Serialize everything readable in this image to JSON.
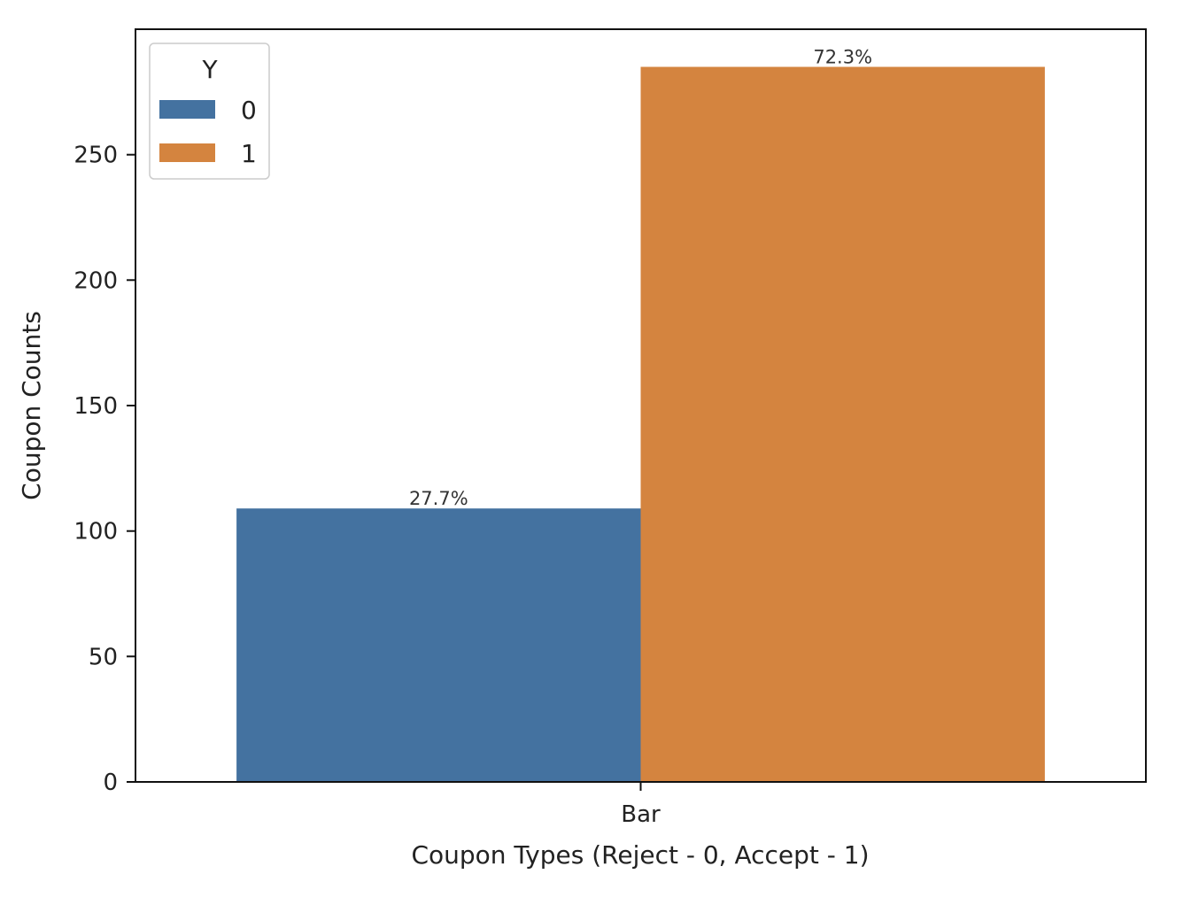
{
  "chart_data": {
    "type": "bar",
    "categories": [
      "Bar"
    ],
    "series": [
      {
        "name": "0",
        "values": [
          109
        ],
        "label": "27.7%",
        "color": "#4472a0"
      },
      {
        "name": "1",
        "values": [
          285
        ],
        "label": "72.3%",
        "color": "#d4843f"
      }
    ],
    "xlabel": "Coupon Types (Reject - 0, Accept - 1)",
    "ylabel": "Coupon Counts",
    "ylim": [
      0,
      300
    ],
    "yticks": [
      0,
      50,
      100,
      150,
      200,
      250
    ],
    "grid": false,
    "legend": {
      "title": "Y",
      "placement": "top-left",
      "entries": [
        "0",
        "1"
      ]
    }
  }
}
